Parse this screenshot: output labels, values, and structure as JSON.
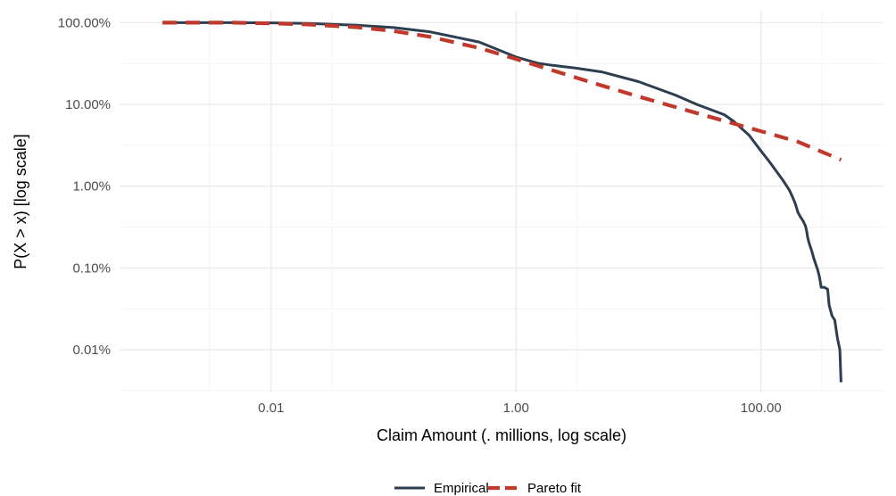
{
  "chart_data": {
    "type": "line",
    "title": "",
    "xlabel": "Claim Amount (. millions, log scale)",
    "ylabel": "P(X > x)  [log scale]",
    "x_scale": "log10",
    "y_scale": "log10",
    "xlim": [
      0.00058,
      1000
    ],
    "ylim": [
      3e-05,
      1.4
    ],
    "x_ticks": [
      {
        "value": 0.01,
        "label": "0.01"
      },
      {
        "value": 1,
        "label": "1.00"
      },
      {
        "value": 100,
        "label": "100.00"
      }
    ],
    "y_ticks": [
      {
        "value": 1,
        "label": "100.00%"
      },
      {
        "value": 0.1,
        "label": "10.00%"
      },
      {
        "value": 0.01,
        "label": "1.00%"
      },
      {
        "value": 0.001,
        "label": "0.10%"
      },
      {
        "value": 0.0001,
        "label": "0.01%"
      }
    ],
    "grid": true,
    "legend": {
      "position": "bottom"
    },
    "series": [
      {
        "name": "Empirical",
        "color": "#2c3e50",
        "line_style": "solid",
        "x": [
          0.0013,
          0.005,
          0.01,
          0.02,
          0.05,
          0.1,
          0.2,
          0.5,
          1.0,
          1.5,
          2,
          3,
          5,
          10,
          20,
          30,
          50,
          60,
          80,
          100,
          120,
          150,
          170,
          180,
          190,
          200,
          210,
          220,
          230,
          235,
          240,
          245,
          250,
          260,
          270,
          290,
          300,
          310,
          330,
          350,
          360,
          380,
          400,
          420,
          440,
          450
        ],
        "y": [
          1.0,
          1.0,
          0.995,
          0.98,
          0.93,
          0.87,
          0.77,
          0.58,
          0.38,
          0.32,
          0.3,
          0.28,
          0.25,
          0.19,
          0.13,
          0.1,
          0.075,
          0.062,
          0.042,
          0.027,
          0.019,
          0.012,
          0.009,
          0.0075,
          0.0062,
          0.0048,
          0.0042,
          0.0038,
          0.0033,
          0.0029,
          0.0024,
          0.0021,
          0.0019,
          0.0016,
          0.0013,
          0.00095,
          0.00078,
          0.00058,
          0.00058,
          0.00055,
          0.00035,
          0.00026,
          0.00023,
          0.00014,
          0.0001,
          4e-05
        ]
      },
      {
        "name": "Pareto fit",
        "color": "#c0392b",
        "line_style": "dashed",
        "x": [
          0.0013,
          0.005,
          0.01,
          0.02,
          0.05,
          0.1,
          0.2,
          0.5,
          1.0,
          2,
          5,
          10,
          20,
          50,
          100,
          200,
          450
        ],
        "y": [
          1.0,
          1.0,
          0.98,
          0.95,
          0.88,
          0.79,
          0.67,
          0.49,
          0.36,
          0.26,
          0.17,
          0.125,
          0.093,
          0.063,
          0.047,
          0.035,
          0.021
        ]
      }
    ]
  }
}
